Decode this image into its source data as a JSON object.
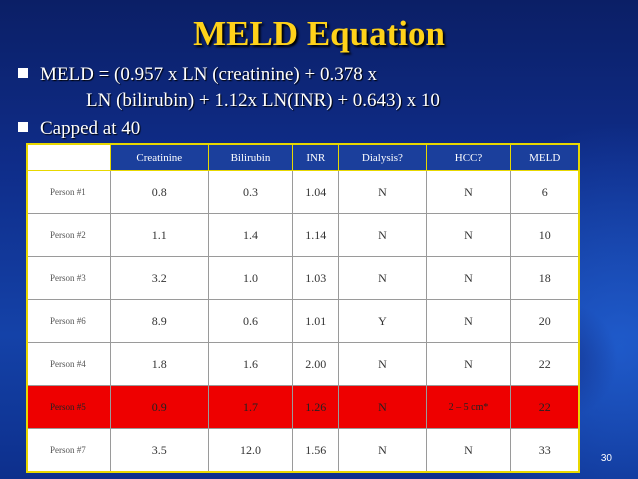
{
  "title": "MELD Equation",
  "bullets": [
    {
      "line1": "MELD = (0.957 x LN (creatinine) + 0.378 x",
      "line2": "LN (bilirubin) + 1.12x LN(INR) + 0.643) x 10"
    },
    {
      "line1": "Capped at 40"
    }
  ],
  "table": {
    "headers": [
      "Creatinine",
      "Bilirubin",
      "INR",
      "Dialysis?",
      "HCC?",
      "MELD"
    ],
    "rows": [
      {
        "name": "Person #1",
        "cells": [
          "0.8",
          "0.3",
          "1.04",
          "N",
          "N",
          "6"
        ]
      },
      {
        "name": "Person #2",
        "cells": [
          "1.1",
          "1.4",
          "1.14",
          "N",
          "N",
          "10"
        ]
      },
      {
        "name": "Person #3",
        "cells": [
          "3.2",
          "1.0",
          "1.03",
          "N",
          "N",
          "18"
        ]
      },
      {
        "name": "Person #6",
        "cells": [
          "8.9",
          "0.6",
          "1.01",
          "Y",
          "N",
          "20"
        ]
      },
      {
        "name": "Person #4",
        "cells": [
          "1.8",
          "1.6",
          "2.00",
          "N",
          "N",
          "22"
        ]
      },
      {
        "name": "Person #5",
        "cells": [
          "0.9",
          "1.7",
          "1.26",
          "N",
          "2 – 5 cm*",
          "22"
        ]
      },
      {
        "name": "Person #7",
        "cells": [
          "3.5",
          "12.0",
          "1.56",
          "N",
          "N",
          "33"
        ]
      }
    ],
    "highlight_color": "#ee0000"
  },
  "page_number": "30",
  "colors": {
    "title": "#ffd21a",
    "background": "#0f2d8a",
    "table_border": "#e8d800"
  }
}
